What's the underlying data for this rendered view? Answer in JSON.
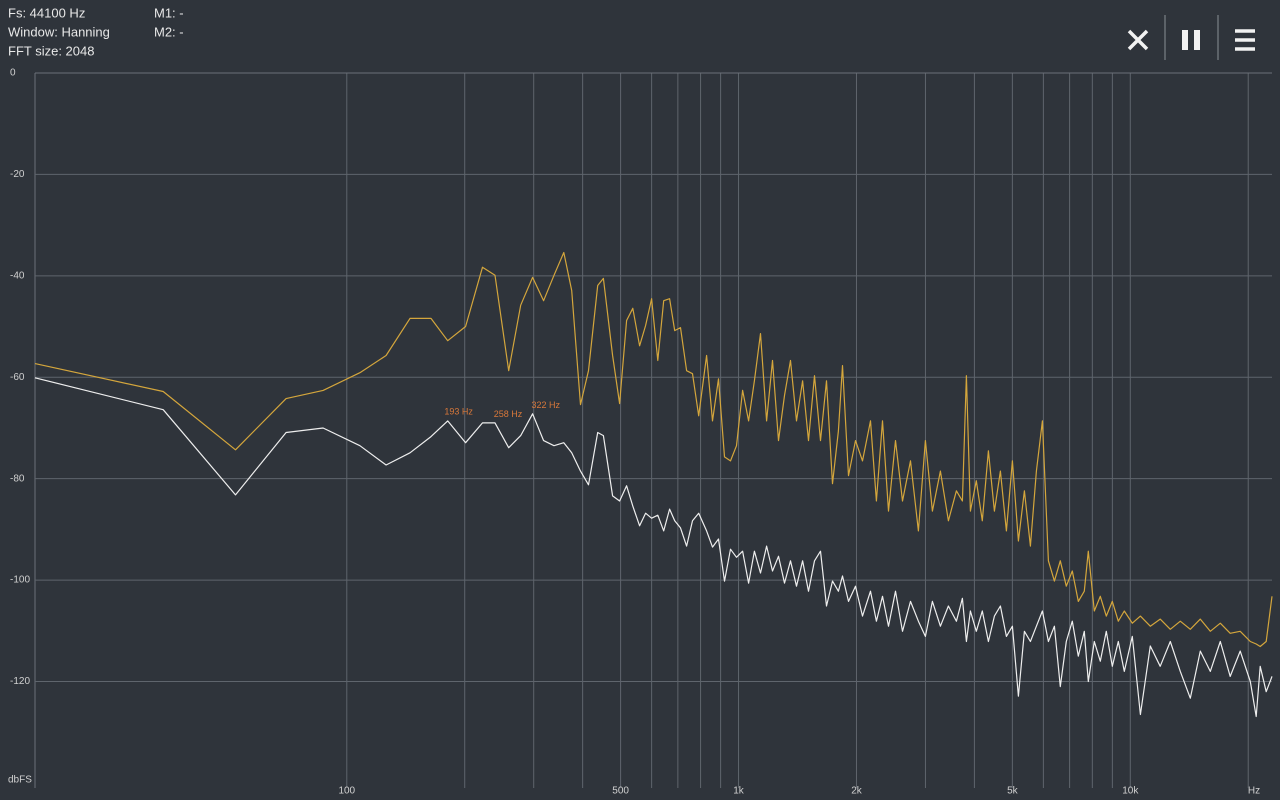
{
  "info": {
    "fs": "Fs: 44100 Hz",
    "window": "Window: Hanning",
    "fft_size": "FFT size: 2048",
    "m1": "M1: -",
    "m2": "M2: -"
  },
  "chart_data": {
    "type": "line",
    "xscale": "log",
    "grid": true,
    "xlabel": "Hz",
    "ylabel": "dbFS",
    "xlim": [
      16,
      23000
    ],
    "xticks": [
      100,
      500,
      {
        "value": 1000,
        "label": "1k"
      },
      {
        "value": 2000,
        "label": "2k"
      },
      {
        "value": 5000,
        "label": "5k"
      },
      {
        "value": 10000,
        "label": "10k"
      }
    ],
    "x_minor_ticks": [
      200,
      300,
      400,
      600,
      700,
      800,
      900,
      3000,
      4000,
      6000,
      7000,
      8000,
      9000,
      20000
    ],
    "ylim": [
      -141,
      0
    ],
    "yticks": [
      0,
      -20,
      -40,
      -60,
      -80,
      -100,
      -120
    ],
    "x": [
      16,
      34,
      52,
      70,
      87,
      108,
      126,
      145,
      164,
      181,
      201,
      222,
      239,
      259,
      278,
      298,
      318,
      338,
      358,
      375,
      395,
      414,
      437,
      452,
      477,
      497,
      518,
      537,
      559,
      579,
      600,
      622,
      644,
      667,
      687,
      711,
      737,
      763,
      791,
      829,
      858,
      889,
      921,
      954,
      988,
      1024,
      1061,
      1098,
      1138,
      1179,
      1221,
      1265,
      1310,
      1357,
      1406,
      1457,
      1509,
      1563,
      1619,
      1677,
      1737,
      1799,
      1842,
      1908,
      1989,
      2072,
      2172,
      2249,
      2330,
      2414,
      2515,
      2621,
      2747,
      2879,
      2999,
      3125,
      3275,
      3433,
      3598,
      3727,
      3816,
      3906,
      4046,
      4191,
      4342,
      4498,
      4660,
      4827,
      5000,
      5180,
      5366,
      5558,
      5758,
      5964,
      6178,
      6400,
      6629,
      6867,
      7112,
      7368,
      7633,
      7814,
      8094,
      8384,
      8685,
      8997,
      9320,
      9654,
      10120,
      10610,
      11250,
      11920,
      12650,
      13420,
      14230,
      15090,
      16000,
      16970,
      17990,
      19080,
      20240,
      20960,
      21460,
      22230,
      23000
    ],
    "series": [
      {
        "color": "#d4a63c",
        "values": [
          -57.3,
          -62.8,
          -74.3,
          -64.2,
          -62.6,
          -59.1,
          -55.7,
          -48.4,
          -48.4,
          -52.8,
          -50,
          -38.3,
          -39.9,
          -58.7,
          -45.8,
          -40.3,
          -44.9,
          -39.9,
          -35.4,
          -42.9,
          -65.4,
          -58.7,
          -41.9,
          -40.5,
          -55.7,
          -65.2,
          -48.8,
          -46.4,
          -53.8,
          -49.8,
          -44.5,
          -56.7,
          -44.9,
          -44.5,
          -50.8,
          -50.2,
          -58.7,
          -59.3,
          -67.6,
          -55.7,
          -68.6,
          -60.3,
          -75.7,
          -76.5,
          -73.5,
          -62.6,
          -68.6,
          -60.7,
          -51.4,
          -68.6,
          -56.7,
          -72.5,
          -63.6,
          -56.7,
          -68.6,
          -60.7,
          -72.5,
          -59.7,
          -72.5,
          -60.7,
          -81,
          -70.6,
          -57.7,
          -79.4,
          -72.5,
          -76.5,
          -68.6,
          -84.4,
          -68.6,
          -86.4,
          -72.5,
          -84.4,
          -76.5,
          -90.3,
          -72.5,
          -86.4,
          -78.5,
          -88.3,
          -82.4,
          -84.4,
          -59.7,
          -86.4,
          -80.4,
          -88.3,
          -74.5,
          -86.4,
          -78.5,
          -90.3,
          -76.5,
          -92.3,
          -82.4,
          -93.3,
          -78.5,
          -68.6,
          -96.2,
          -100.2,
          -96.2,
          -101.2,
          -98.2,
          -104.2,
          -102.2,
          -94.3,
          -106.1,
          -103.2,
          -107.1,
          -104.2,
          -108.1,
          -106.1,
          -108.5,
          -107.1,
          -109.1,
          -107.7,
          -109.7,
          -108.1,
          -109.7,
          -107.7,
          -110.1,
          -108.5,
          -110.5,
          -110.1,
          -112.1,
          -112.6,
          -113.1,
          -112.1,
          -103.2
        ]
      },
      {
        "color": "#eeeeee",
        "values": [
          -60.1,
          -66.4,
          -83.2,
          -70.9,
          -70,
          -73.5,
          -77.3,
          -74.9,
          -71.7,
          -68.6,
          -72.9,
          -69,
          -69,
          -73.9,
          -71.5,
          -67.2,
          -72.5,
          -73.5,
          -72.9,
          -74.9,
          -78.5,
          -81.2,
          -70.9,
          -71.5,
          -83.4,
          -84.4,
          -81.4,
          -85.4,
          -89.3,
          -86.8,
          -87.8,
          -87.2,
          -90.3,
          -86,
          -88.3,
          -89.7,
          -93.3,
          -88.3,
          -86.8,
          -90.3,
          -93.5,
          -91.9,
          -100.2,
          -93.9,
          -95.5,
          -94.3,
          -100.6,
          -94.3,
          -98.6,
          -93.3,
          -98.2,
          -95.3,
          -100.6,
          -96.2,
          -101.2,
          -96.2,
          -102.2,
          -96.2,
          -94.3,
          -105.1,
          -100.2,
          -102.2,
          -99.2,
          -104.2,
          -101.2,
          -107.1,
          -102.2,
          -108.1,
          -103.2,
          -109.1,
          -102.2,
          -110.1,
          -104.2,
          -108.1,
          -111.1,
          -104.2,
          -109.1,
          -105.1,
          -108.1,
          -103.6,
          -112.1,
          -106.1,
          -110.1,
          -106.1,
          -112.1,
          -107.1,
          -105.1,
          -111.1,
          -109.1,
          -122.9,
          -110.1,
          -112.1,
          -109.1,
          -106.1,
          -112.1,
          -109.1,
          -121,
          -112.1,
          -108.1,
          -115,
          -110.1,
          -120,
          -112.1,
          -116,
          -110.1,
          -117,
          -112.1,
          -118,
          -111.1,
          -126.5,
          -113,
          -117,
          -112.1,
          -118,
          -123.3,
          -114,
          -118,
          -112.1,
          -119,
          -114,
          -120,
          -126.9,
          -117,
          -122,
          -119
        ]
      }
    ],
    "annotation_color": "#d9783a",
    "annotations": [
      {
        "text": "193 Hz",
        "x": 193,
        "y": -66.9
      },
      {
        "text": "258 Hz",
        "x": 258,
        "y": -67.4
      },
      {
        "text": "322 Hz",
        "x": 322,
        "y": -65.6
      }
    ]
  }
}
